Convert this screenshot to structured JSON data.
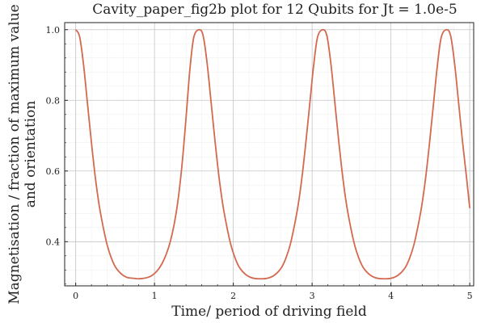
{
  "chart_data": {
    "type": "line",
    "title": "Cavity_paper_fig2b plot for 12 Qubits for Jt = 1.0e-5",
    "xlabel": "Time/ period of driving field",
    "ylabel_lines": [
      "Magnetisation / fraction of maximum value",
      "and orientation"
    ],
    "xlim": [
      -0.14,
      5.05
    ],
    "ylim": [
      0.275,
      1.02
    ],
    "xticks": [
      0,
      1,
      2,
      3,
      4,
      5
    ],
    "xtick_labels": [
      "0",
      "1",
      "2",
      "3",
      "4",
      "5"
    ],
    "yticks": [
      0.4,
      0.6,
      0.8,
      1.0
    ],
    "ytick_labels": [
      "0.4",
      "0.6",
      "0.8",
      "1.0"
    ],
    "grid": true,
    "legend": "none",
    "series": [
      {
        "color": "#d4694f",
        "x": [
          0.0,
          0.05,
          0.1,
          0.15,
          0.2,
          0.25,
          0.3,
          0.35,
          0.4,
          0.45,
          0.5,
          0.55,
          0.6,
          0.65,
          0.7,
          0.75,
          0.785,
          0.85,
          0.9,
          0.95,
          1.0,
          1.05,
          1.1,
          1.15,
          1.2,
          1.25,
          1.3,
          1.35,
          1.4,
          1.45,
          1.5,
          1.57,
          1.62,
          1.67,
          1.72,
          1.77,
          1.82,
          1.87,
          1.92,
          1.97,
          2.02,
          2.07,
          2.12,
          2.17,
          2.22,
          2.27,
          2.356,
          2.42,
          2.47,
          2.52,
          2.57,
          2.62,
          2.67,
          2.72,
          2.77,
          2.82,
          2.87,
          2.92,
          2.97,
          3.02,
          3.07,
          3.14,
          3.19,
          3.24,
          3.29,
          3.34,
          3.39,
          3.44,
          3.49,
          3.54,
          3.59,
          3.64,
          3.69,
          3.74,
          3.79,
          3.84,
          3.927,
          3.99,
          4.04,
          4.09,
          4.14,
          4.19,
          4.24,
          4.29,
          4.34,
          4.39,
          4.44,
          4.49,
          4.54,
          4.59,
          4.64,
          4.71,
          4.76,
          4.81,
          4.86,
          4.91,
          4.96,
          5.0
        ],
        "y": [
          1.0,
          0.98,
          0.9,
          0.79,
          0.68,
          0.58,
          0.5,
          0.44,
          0.39,
          0.355,
          0.33,
          0.315,
          0.305,
          0.299,
          0.297,
          0.296,
          0.295,
          0.296,
          0.298,
          0.302,
          0.31,
          0.322,
          0.34,
          0.365,
          0.4,
          0.45,
          0.52,
          0.62,
          0.75,
          0.89,
          0.98,
          1.0,
          0.98,
          0.9,
          0.79,
          0.68,
          0.58,
          0.5,
          0.44,
          0.39,
          0.355,
          0.33,
          0.315,
          0.305,
          0.299,
          0.296,
          0.295,
          0.296,
          0.299,
          0.305,
          0.315,
          0.33,
          0.355,
          0.39,
          0.44,
          0.5,
          0.58,
          0.68,
          0.79,
          0.9,
          0.98,
          1.0,
          0.98,
          0.9,
          0.79,
          0.68,
          0.58,
          0.5,
          0.44,
          0.39,
          0.355,
          0.33,
          0.315,
          0.305,
          0.299,
          0.296,
          0.295,
          0.296,
          0.299,
          0.305,
          0.315,
          0.33,
          0.355,
          0.39,
          0.44,
          0.5,
          0.58,
          0.68,
          0.79,
          0.9,
          0.98,
          1.0,
          0.98,
          0.9,
          0.79,
          0.68,
          0.58,
          0.495
        ]
      }
    ]
  }
}
